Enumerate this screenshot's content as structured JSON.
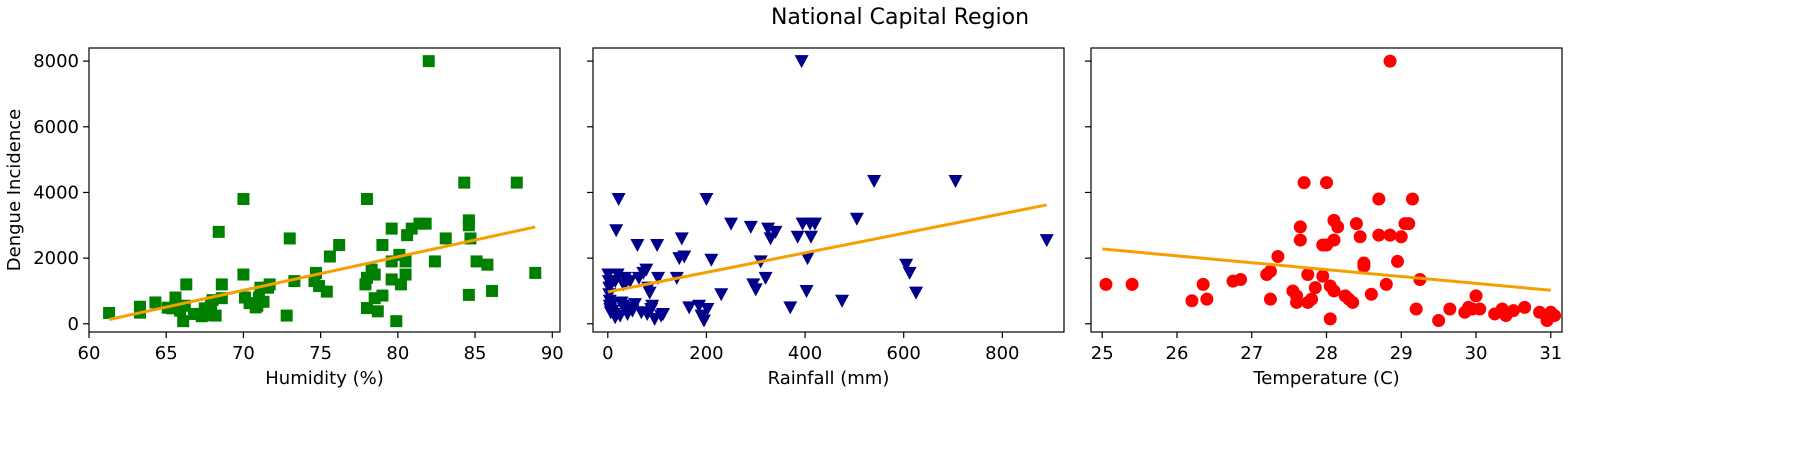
{
  "figure": {
    "title": "National Capital Region"
  },
  "colors": {
    "trend": "#f5a000",
    "humidity": "#008000",
    "rainfall": "#00008b",
    "temperature": "#ff0000",
    "axis": "#000000"
  },
  "chart_data": [
    {
      "type": "scatter",
      "xlabel": "Humidity (%)",
      "ylabel": "Dengue Incidence",
      "xlim": [
        60,
        90.5
      ],
      "ylim": [
        -250,
        8400
      ],
      "xticks": [
        60,
        65,
        70,
        75,
        80,
        85,
        90
      ],
      "yticks": [
        0,
        2000,
        4000,
        6000,
        8000
      ],
      "marker": "square",
      "trend": {
        "x": [
          61.3,
          88.9
        ],
        "y": [
          130,
          2950
        ]
      },
      "points": [
        [
          61.3,
          330
        ],
        [
          63.3,
          340
        ],
        [
          63.3,
          520
        ],
        [
          64.3,
          650
        ],
        [
          65.1,
          490
        ],
        [
          65.4,
          470
        ],
        [
          65.6,
          800
        ],
        [
          65.9,
          400
        ],
        [
          66.1,
          80
        ],
        [
          66.2,
          550
        ],
        [
          66.3,
          1200
        ],
        [
          66.8,
          300
        ],
        [
          67.1,
          300
        ],
        [
          67.3,
          230
        ],
        [
          67.5,
          470
        ],
        [
          67.6,
          260
        ],
        [
          67.9,
          560
        ],
        [
          68.0,
          720
        ],
        [
          68.2,
          250
        ],
        [
          68.4,
          2800
        ],
        [
          68.6,
          780
        ],
        [
          68.6,
          1200
        ],
        [
          70.0,
          3800
        ],
        [
          70.0,
          1500
        ],
        [
          70.1,
          800
        ],
        [
          70.4,
          630
        ],
        [
          70.8,
          500
        ],
        [
          70.9,
          550
        ],
        [
          71.0,
          800
        ],
        [
          71.1,
          1100
        ],
        [
          71.3,
          670
        ],
        [
          71.6,
          1100
        ],
        [
          71.7,
          1200
        ],
        [
          72.8,
          250
        ],
        [
          73.0,
          2600
        ],
        [
          73.3,
          1300
        ],
        [
          74.6,
          1300
        ],
        [
          74.7,
          1550
        ],
        [
          74.9,
          1150
        ],
        [
          75.4,
          980
        ],
        [
          75.6,
          2050
        ],
        [
          76.2,
          2400
        ],
        [
          77.9,
          1200
        ],
        [
          78.0,
          3800
        ],
        [
          78.0,
          1400
        ],
        [
          78.0,
          480
        ],
        [
          78.3,
          1650
        ],
        [
          78.5,
          1500
        ],
        [
          78.5,
          780
        ],
        [
          78.7,
          380
        ],
        [
          79.0,
          860
        ],
        [
          79.0,
          2400
        ],
        [
          79.6,
          2900
        ],
        [
          79.6,
          1900
        ],
        [
          79.6,
          1350
        ],
        [
          79.9,
          80
        ],
        [
          80.1,
          2100
        ],
        [
          80.2,
          1200
        ],
        [
          80.5,
          1500
        ],
        [
          80.5,
          1900
        ],
        [
          80.6,
          2700
        ],
        [
          80.9,
          2900
        ],
        [
          81.4,
          3050
        ],
        [
          81.8,
          3050
        ],
        [
          82.0,
          8000
        ],
        [
          82.4,
          1900
        ],
        [
          83.1,
          2600
        ],
        [
          84.3,
          4300
        ],
        [
          84.6,
          3000
        ],
        [
          84.6,
          3150
        ],
        [
          84.7,
          2600
        ],
        [
          84.6,
          880
        ],
        [
          85.1,
          1900
        ],
        [
          85.8,
          1800
        ],
        [
          86.1,
          1000
        ],
        [
          87.7,
          4300
        ],
        [
          88.9,
          1550
        ]
      ]
    },
    {
      "type": "scatter",
      "xlabel": "Rainfall (mm)",
      "ylabel": "",
      "xlim": [
        -30,
        925
      ],
      "ylim": [
        -250,
        8400
      ],
      "xticks": [
        0,
        200,
        400,
        600,
        800
      ],
      "yticks": [
        0,
        2000,
        4000,
        6000,
        8000
      ],
      "marker": "triangle-down",
      "trend": {
        "x": [
          0,
          890
        ],
        "y": [
          970,
          3620
        ]
      },
      "points": [
        [
          1,
          1500
        ],
        [
          2,
          1300
        ],
        [
          3,
          1100
        ],
        [
          3,
          900
        ],
        [
          4,
          700
        ],
        [
          4,
          550
        ],
        [
          5,
          450
        ],
        [
          6,
          350
        ],
        [
          8,
          600
        ],
        [
          10,
          400
        ],
        [
          12,
          300
        ],
        [
          15,
          200
        ],
        [
          15,
          1300
        ],
        [
          17,
          2850
        ],
        [
          20,
          1500
        ],
        [
          22,
          3800
        ],
        [
          25,
          250
        ],
        [
          28,
          650
        ],
        [
          30,
          550
        ],
        [
          32,
          1200
        ],
        [
          35,
          1400
        ],
        [
          38,
          1300
        ],
        [
          40,
          300
        ],
        [
          42,
          500
        ],
        [
          45,
          1300
        ],
        [
          50,
          400
        ],
        [
          55,
          600
        ],
        [
          60,
          2400
        ],
        [
          63,
          1400
        ],
        [
          68,
          350
        ],
        [
          72,
          1550
        ],
        [
          78,
          1650
        ],
        [
          80,
          300
        ],
        [
          82,
          1100
        ],
        [
          85,
          950
        ],
        [
          88,
          450
        ],
        [
          90,
          550
        ],
        [
          95,
          150
        ],
        [
          100,
          2400
        ],
        [
          102,
          1400
        ],
        [
          108,
          250
        ],
        [
          112,
          300
        ],
        [
          140,
          1400
        ],
        [
          145,
          2000
        ],
        [
          150,
          2600
        ],
        [
          155,
          2050
        ],
        [
          165,
          500
        ],
        [
          185,
          550
        ],
        [
          190,
          250
        ],
        [
          195,
          100
        ],
        [
          200,
          3800
        ],
        [
          202,
          450
        ],
        [
          210,
          1950
        ],
        [
          230,
          900
        ],
        [
          250,
          3050
        ],
        [
          290,
          2950
        ],
        [
          295,
          1200
        ],
        [
          300,
          1050
        ],
        [
          310,
          1900
        ],
        [
          320,
          1400
        ],
        [
          325,
          2900
        ],
        [
          330,
          2600
        ],
        [
          340,
          2800
        ],
        [
          370,
          500
        ],
        [
          385,
          2650
        ],
        [
          393,
          8000
        ],
        [
          395,
          3050
        ],
        [
          403,
          1000
        ],
        [
          405,
          2000
        ],
        [
          410,
          3050
        ],
        [
          412,
          2650
        ],
        [
          420,
          3050
        ],
        [
          475,
          700
        ],
        [
          505,
          3200
        ],
        [
          540,
          4350
        ],
        [
          605,
          1800
        ],
        [
          612,
          1550
        ],
        [
          625,
          950
        ],
        [
          705,
          4350
        ],
        [
          890,
          2550
        ]
      ]
    },
    {
      "type": "scatter",
      "xlabel": "Temperature (C)",
      "ylabel": "",
      "xlim": [
        24.85,
        31.15
      ],
      "ylim": [
        -250,
        8400
      ],
      "xticks": [
        25,
        26,
        27,
        28,
        29,
        30,
        31
      ],
      "yticks": [
        0,
        2000,
        4000,
        6000,
        8000
      ],
      "marker": "circle",
      "trend": {
        "x": [
          25.0,
          31.0
        ],
        "y": [
          2280,
          1020
        ]
      },
      "points": [
        [
          25.05,
          1200
        ],
        [
          25.4,
          1200
        ],
        [
          26.2,
          700
        ],
        [
          26.35,
          1200
        ],
        [
          26.4,
          750
        ],
        [
          26.75,
          1300
        ],
        [
          26.85,
          1350
        ],
        [
          27.2,
          1500
        ],
        [
          27.25,
          1600
        ],
        [
          27.25,
          750
        ],
        [
          27.35,
          2050
        ],
        [
          27.55,
          1000
        ],
        [
          27.6,
          850
        ],
        [
          27.6,
          650
        ],
        [
          27.65,
          2950
        ],
        [
          27.65,
          2550
        ],
        [
          27.7,
          4300
        ],
        [
          27.75,
          650
        ],
        [
          27.75,
          1500
        ],
        [
          27.8,
          750
        ],
        [
          27.85,
          1100
        ],
        [
          27.95,
          2400
        ],
        [
          27.95,
          1450
        ],
        [
          28.0,
          2400
        ],
        [
          28.0,
          4300
        ],
        [
          28.05,
          1150
        ],
        [
          28.05,
          150
        ],
        [
          28.1,
          1000
        ],
        [
          28.1,
          2550
        ],
        [
          28.1,
          3150
        ],
        [
          28.15,
          2950
        ],
        [
          28.25,
          850
        ],
        [
          28.3,
          750
        ],
        [
          28.35,
          650
        ],
        [
          28.4,
          3050
        ],
        [
          28.45,
          2650
        ],
        [
          28.5,
          1850
        ],
        [
          28.5,
          1750
        ],
        [
          28.6,
          900
        ],
        [
          28.7,
          2700
        ],
        [
          28.7,
          3800
        ],
        [
          28.8,
          1200
        ],
        [
          28.85,
          2700
        ],
        [
          28.85,
          8000
        ],
        [
          28.95,
          1900
        ],
        [
          29.0,
          2650
        ],
        [
          29.05,
          3050
        ],
        [
          29.1,
          3050
        ],
        [
          29.15,
          3800
        ],
        [
          29.2,
          450
        ],
        [
          29.25,
          1350
        ],
        [
          29.5,
          100
        ],
        [
          29.65,
          450
        ],
        [
          29.85,
          350
        ],
        [
          29.9,
          500
        ],
        [
          29.95,
          450
        ],
        [
          30.0,
          850
        ],
        [
          30.05,
          450
        ],
        [
          30.25,
          300
        ],
        [
          30.35,
          450
        ],
        [
          30.4,
          250
        ],
        [
          30.5,
          400
        ],
        [
          30.65,
          500
        ],
        [
          30.85,
          350
        ],
        [
          30.95,
          100
        ],
        [
          31.0,
          350
        ],
        [
          31.05,
          250
        ]
      ]
    }
  ]
}
